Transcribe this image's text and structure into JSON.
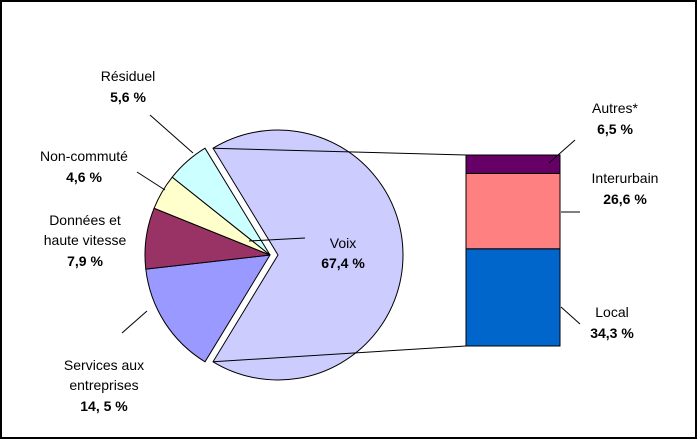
{
  "chart_data": [
    {
      "type": "pie",
      "labels": [
        {
          "line1": "Voix",
          "line2": "",
          "line3": ""
        },
        {
          "line1": "Services aux",
          "line2": "entreprises",
          "line3": ""
        },
        {
          "line1": "Données et",
          "line2": "haute vitesse",
          "line3": ""
        },
        {
          "line1": "Non-commuté",
          "line2": "",
          "line3": ""
        },
        {
          "line1": "Résiduel",
          "line2": "",
          "line3": ""
        }
      ],
      "value_labels": [
        "67,4 %",
        "14, 5 %",
        "7,9 %",
        "4,6 %",
        "5,6 %"
      ],
      "values": [
        67.4,
        14.5,
        7.9,
        4.6,
        5.6
      ],
      "colors": [
        "#ccccff",
        "#9999ff",
        "#993366",
        "#ffffcc",
        "#ccffff"
      ],
      "exploded_slice": "Voix"
    },
    {
      "type": "bar",
      "stacked": true,
      "breakdown_of": "Voix",
      "categories": [
        "Local",
        "Interurbain",
        "Autres*"
      ],
      "value_labels": [
        "34,3 %",
        "26,6 %",
        "6,5 %"
      ],
      "values": [
        34.3,
        26.6,
        6.5
      ],
      "colors": [
        "#0066cc",
        "#ff8080",
        "#660066"
      ]
    }
  ]
}
